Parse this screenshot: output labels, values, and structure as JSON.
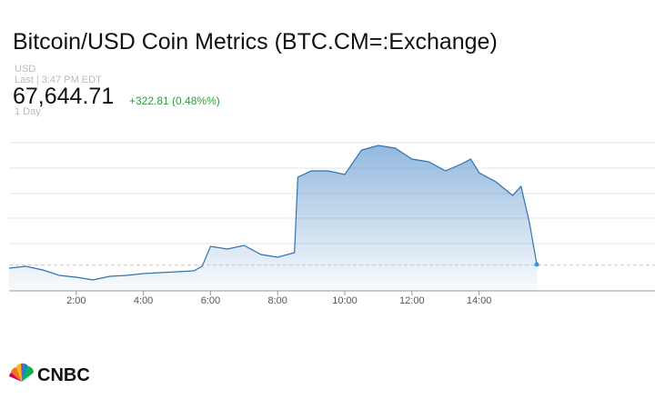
{
  "header": {
    "title": "Bitcoin/USD Coin Metrics (BTC.CM=:Exchange)",
    "currency": "USD",
    "last": "Last | 3:47 PM EDT",
    "price": "67,644.71",
    "change": "+322.81 (0.48%%)",
    "range": "1 Day",
    "brand": "CNBC"
  },
  "chart_data": {
    "type": "line",
    "color": "#2f73b3",
    "x": [
      0,
      0.5,
      1,
      1.5,
      2,
      2.5,
      3,
      3.5,
      4,
      4.5,
      5,
      5.5,
      5.75,
      6,
      6.5,
      7,
      7.5,
      8,
      8.5,
      8.6,
      9,
      9.5,
      10,
      10.5,
      11,
      11.5,
      12,
      12.5,
      13,
      13.5,
      13.75,
      14,
      14.5,
      15,
      15.25,
      15.5,
      15.72
    ],
    "values": [
      67545,
      67595,
      67495,
      67345,
      67295,
      67220,
      67320,
      67345,
      67395,
      67420,
      67445,
      67470,
      67595,
      68145,
      68070,
      68170,
      67920,
      67845,
      67970,
      70045,
      70220,
      70220,
      70120,
      70795,
      70920,
      70845,
      70545,
      70470,
      70220,
      70420,
      70545,
      70170,
      69920,
      69545,
      69795,
      68795,
      67644.71
    ],
    "reference_line": 67630,
    "grid_values": [
      68220,
      68920,
      69595,
      70295,
      70995
    ],
    "xlim": [
      0,
      19.24
    ],
    "ylim": [
      66920,
      71295
    ],
    "xticks": [
      {
        "value": 2,
        "label": "2:00"
      },
      {
        "value": 4,
        "label": "4:00"
      },
      {
        "value": 6,
        "label": "6:00"
      },
      {
        "value": 8,
        "label": "8:00"
      },
      {
        "value": 10,
        "label": "10:00"
      },
      {
        "value": 12,
        "label": "12:00"
      },
      {
        "value": 14,
        "label": "14:00"
      }
    ]
  }
}
